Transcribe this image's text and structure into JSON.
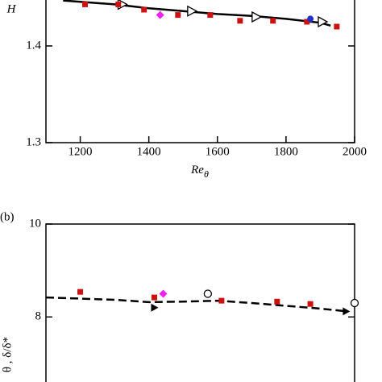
{
  "chart_data": [
    {
      "type": "scatter",
      "panel_label": null,
      "ylabel": "H",
      "xlabel": "Re",
      "xlabel_subscript": "θ",
      "xlim": [
        1100,
        2000
      ],
      "xticks": [
        1200,
        1400,
        1600,
        1800,
        2000
      ],
      "ylim": [
        1.3,
        1.45
      ],
      "yticks": [
        1.3,
        1.4
      ],
      "series": [
        {
          "marker": "line",
          "color": "#000000",
          "dash": false,
          "x": [
            1150,
            1300,
            1400,
            1500,
            1600,
            1700,
            1800,
            1900,
            1930
          ],
          "values": [
            1.447,
            1.443,
            1.439,
            1.436,
            1.433,
            1.431,
            1.428,
            1.424,
            1.421
          ]
        },
        {
          "marker": "triangle",
          "color": "#000000",
          "x": [
            1322,
            1525,
            1713,
            1906
          ],
          "values": [
            1.443,
            1.436,
            1.43,
            1.425
          ]
        },
        {
          "marker": "square",
          "color": "#cc1111",
          "x": [
            1214,
            1311,
            1386,
            1485,
            1579,
            1666,
            1762,
            1861,
            1948
          ],
          "values": [
            1.443,
            1.443,
            1.4375,
            1.432,
            1.432,
            1.426,
            1.426,
            1.425,
            1.42
          ]
        },
        {
          "marker": "diamond",
          "color": "#ee22ee",
          "x": [
            1433
          ],
          "values": [
            1.432
          ]
        },
        {
          "marker": "circle",
          "color": "#2233cc",
          "x": [
            1871
          ],
          "values": [
            1.428
          ]
        }
      ]
    },
    {
      "type": "scatter",
      "panel_label": "(b)",
      "ylabel": "θ , δ/δ*",
      "xlim": [
        1100,
        2000
      ],
      "ylim": [
        6.6,
        10
      ],
      "yticks": [
        8,
        10
      ],
      "series": [
        {
          "marker": "line",
          "color": "#000000",
          "dash": true,
          "x": [
            1100,
            1300,
            1400,
            1500,
            1600,
            1700,
            1800,
            1900,
            1980
          ],
          "values": [
            8.42,
            8.37,
            8.32,
            8.33,
            8.35,
            8.3,
            8.24,
            8.18,
            8.12
          ]
        },
        {
          "marker": "arrow",
          "color": "#000000",
          "x": [
            1416,
            1975
          ],
          "values": [
            8.2,
            8.12
          ]
        },
        {
          "marker": "square",
          "color": "#cc1111",
          "x": [
            1200,
            1416,
            1612,
            1774,
            1871
          ],
          "values": [
            8.54,
            8.42,
            8.35,
            8.33,
            8.28
          ]
        },
        {
          "marker": "diamond",
          "color": "#ee22ee",
          "x": [
            1442
          ],
          "values": [
            8.5
          ]
        },
        {
          "marker": "open-circle",
          "color": "#000000",
          "x": [
            1572,
            2000
          ],
          "values": [
            8.5,
            8.3
          ]
        }
      ]
    }
  ]
}
